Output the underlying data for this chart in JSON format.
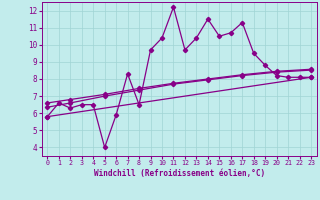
{
  "xlabel": "Windchill (Refroidissement éolien,°C)",
  "background_color": "#c2ecec",
  "grid_color": "#a0d4d4",
  "line_color": "#880088",
  "axis_color": "#880088",
  "xlim": [
    -0.5,
    23.5
  ],
  "ylim": [
    3.5,
    12.5
  ],
  "xticks": [
    0,
    1,
    2,
    3,
    4,
    5,
    6,
    7,
    8,
    9,
    10,
    11,
    12,
    13,
    14,
    15,
    16,
    17,
    18,
    19,
    20,
    21,
    22,
    23
  ],
  "yticks": [
    4,
    5,
    6,
    7,
    8,
    9,
    10,
    11,
    12
  ],
  "series1_x": [
    0,
    1,
    2,
    3,
    4,
    5,
    6,
    7,
    8,
    9,
    10,
    11,
    12,
    13,
    14,
    15,
    16,
    17,
    18,
    19,
    20,
    21,
    22,
    23
  ],
  "series1_y": [
    5.8,
    6.6,
    6.3,
    6.5,
    6.5,
    4.0,
    5.9,
    8.3,
    6.5,
    9.7,
    10.4,
    12.2,
    9.7,
    10.4,
    11.5,
    10.5,
    10.7,
    11.3,
    9.5,
    8.8,
    8.2,
    8.1,
    8.1,
    8.1
  ],
  "series2_x": [
    0,
    23
  ],
  "series2_y": [
    5.8,
    8.1
  ],
  "series3_x": [
    0,
    2,
    5,
    8,
    11,
    14,
    17,
    20,
    23
  ],
  "series3_y": [
    6.35,
    6.6,
    7.0,
    7.35,
    7.7,
    7.95,
    8.2,
    8.4,
    8.52
  ],
  "series4_x": [
    0,
    2,
    5,
    8,
    11,
    14,
    17,
    20,
    23
  ],
  "series4_y": [
    6.6,
    6.8,
    7.1,
    7.45,
    7.75,
    8.0,
    8.25,
    8.45,
    8.57
  ]
}
